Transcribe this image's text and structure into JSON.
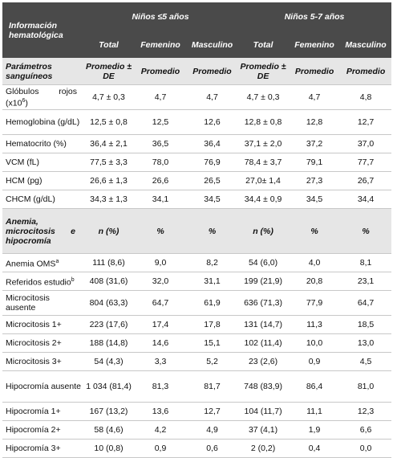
{
  "header": {
    "title": "Información hematológica",
    "group_a": "Niños ≤5 años",
    "group_b": "Niños 5-7  años",
    "sub": [
      "Total",
      "Femenino",
      "Masculino",
      "Total",
      "Femenino",
      "Masculino"
    ]
  },
  "section1": {
    "label": "Parámetros sanguíneos",
    "cols": [
      "Promedio ± DE",
      "Promedio",
      "Promedio",
      "Promedio ± DE",
      "Promedio",
      "Promedio"
    ],
    "rows": [
      {
        "label_a": "Glóbulos",
        "label_b": "rojos",
        "label_c": "(x10",
        "label_sup": "6",
        "label_d": ")",
        "values": [
          "4,7 ± 0,3",
          "4,7",
          "4,7",
          "4,7 ± 0,3",
          "4,7",
          "4,8"
        ]
      },
      {
        "label": "Hemoglobina (g/dL)",
        "values": [
          "12,5 ± 0,8",
          "12,5",
          "12,6",
          "12,8 ± 0,8",
          "12,8",
          "12,7"
        ]
      },
      {
        "label": "Hematocrito (%)",
        "values": [
          "36,4 ± 2,1",
          "36,5",
          "36,4",
          "37,1 ± 2,0",
          "37,2",
          "37,0"
        ]
      },
      {
        "label": "VCM (fL)",
        "values": [
          "77,5 ± 3,3",
          "78,0",
          "76,9",
          "78,4 ± 3,7",
          "79,1",
          "77,7"
        ]
      },
      {
        "label": "HCM (pg)",
        "values": [
          "26,6 ± 1,3",
          "26,6",
          "26,5",
          "27,0± 1,4",
          "27,3",
          "26,7"
        ]
      },
      {
        "label": "CHCM (g/dL)",
        "values": [
          "34,3 ± 1,3",
          "34,1",
          "34,5",
          "34,4 ± 0,9",
          "34,5",
          "34,4"
        ]
      }
    ]
  },
  "section2": {
    "label_line1": "Anemia,",
    "label_line2a": "microcitosis",
    "label_line2b": "e",
    "label_line3": "hipocromía",
    "cols": [
      "n (%)",
      "%",
      "%",
      "n (%)",
      "%",
      "%"
    ],
    "rows": [
      {
        "label": "Anemia OMS",
        "sup": "a",
        "values": [
          "111 (8,6)",
          "9,0",
          "8,2",
          "54 (6,0)",
          "4,0",
          "8,1"
        ]
      },
      {
        "label": "Referidos estudio",
        "sup": "b",
        "values": [
          "408 (31,6)",
          "32,0",
          "31,1",
          "199 (21,9)",
          "20,8",
          "23,1"
        ]
      },
      {
        "label": "Microcitosis ausente",
        "values": [
          "804 (63,3)",
          "64,7",
          "61,9",
          "636 (71,3)",
          "77,9",
          "64,7"
        ]
      },
      {
        "label": "Microcitosis  1+",
        "values": [
          "223 (17,6)",
          "17,4",
          "17,8",
          "131 (14,7)",
          "11,3",
          "18,5"
        ]
      },
      {
        "label": "Microcitosis  2+",
        "values": [
          "188 (14,8)",
          "14,6",
          "15,1",
          "102 (11,4)",
          "10,0",
          "13,0"
        ]
      },
      {
        "label": "Microcitosis 3+",
        "values": [
          "54 (4,3)",
          "3,3",
          "5,2",
          "23 (2,6)",
          "0,9",
          "4,5"
        ]
      },
      {
        "label": "Hipocromía ausente",
        "values": [
          "1 034 (81,4)",
          "81,3",
          "81,7",
          "748 (83,9)",
          "86,4",
          "81,0"
        ]
      },
      {
        "label": "Hipocromía 1+",
        "values": [
          "167 (13,2)",
          "13,6",
          "12,7",
          "104 (11,7)",
          "11,1",
          "12,3"
        ]
      },
      {
        "label": "Hipocromía 2+",
        "values": [
          "58 (4,6)",
          "4,2",
          "4,9",
          "37 (4,1)",
          "1,9",
          "6,6"
        ]
      },
      {
        "label": "Hipocromía 3+",
        "values": [
          "10 (0,8)",
          "0,9",
          "0,6",
          "2 (0,2)",
          "0,4",
          "0,0"
        ]
      }
    ]
  }
}
